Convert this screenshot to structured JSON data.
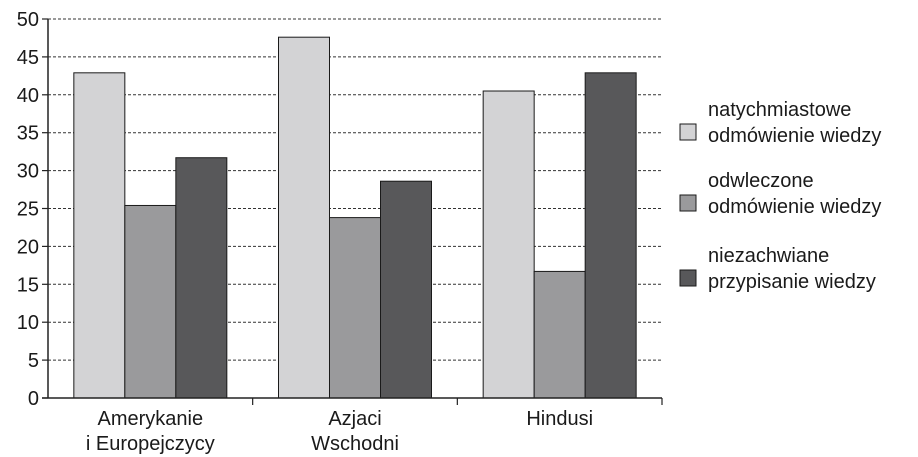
{
  "chart_data": {
    "type": "bar",
    "title": "",
    "xlabel": "",
    "ylabel": "",
    "ylim": [
      0,
      50
    ],
    "yticks": [
      0,
      5,
      10,
      15,
      20,
      25,
      30,
      35,
      40,
      45,
      50
    ],
    "grid": "horizontal dashed",
    "legend_position": "right",
    "categories": [
      [
        "Amerykanie",
        "i Europejczycy"
      ],
      [
        "Azjaci",
        "Wschodni"
      ],
      [
        "Hindusi"
      ]
    ],
    "series": [
      {
        "name": [
          "natychmiastowe",
          "odmówienie wiedzy"
        ],
        "color": "#d3d3d5",
        "values": [
          42.9,
          47.6,
          40.5
        ]
      },
      {
        "name": [
          "odwleczone",
          "odmówienie wiedzy"
        ],
        "color": "#9a9a9c",
        "values": [
          25.4,
          23.8,
          16.7
        ]
      },
      {
        "name": [
          "niezachwiane",
          "przypisanie wiedzy"
        ],
        "color": "#58585a",
        "values": [
          31.7,
          28.6,
          42.9
        ]
      }
    ]
  }
}
